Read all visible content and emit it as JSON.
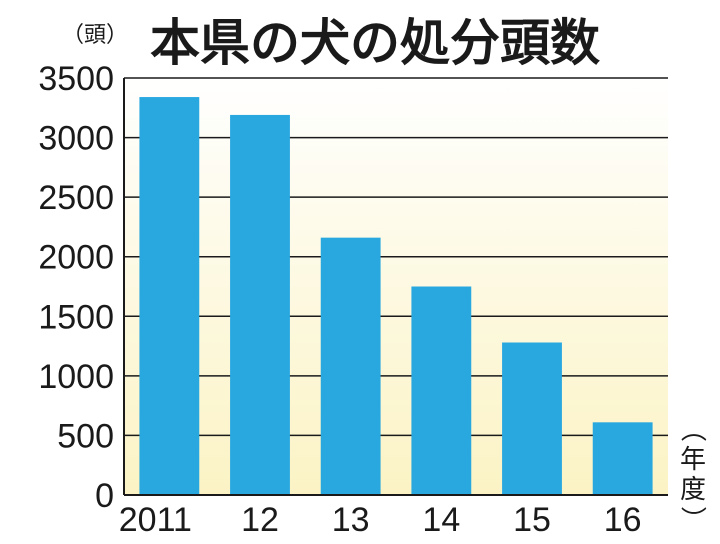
{
  "title": "本県の犬の処分頭数",
  "y_unit_label": "（頭）",
  "x_unit_label": "（年度）",
  "colors": {
    "bar": "#29a8e0",
    "plot_bg_top": "#ffffff",
    "plot_bg_bottom": "#fbf3c4",
    "grid": "#1a1a1a",
    "text": "#1a1a1a"
  },
  "chart_data": {
    "type": "bar",
    "title": "本県の犬の処分頭数",
    "xlabel": "（年度）",
    "ylabel": "（頭）",
    "categories": [
      "2011",
      "12",
      "13",
      "14",
      "15",
      "16"
    ],
    "values": [
      3340,
      3190,
      2160,
      1750,
      1280,
      610
    ],
    "ylim": [
      0,
      3500
    ],
    "yticks": [
      0,
      500,
      1000,
      1500,
      2000,
      2500,
      3000,
      3500
    ],
    "grid": true,
    "legend": "none"
  }
}
